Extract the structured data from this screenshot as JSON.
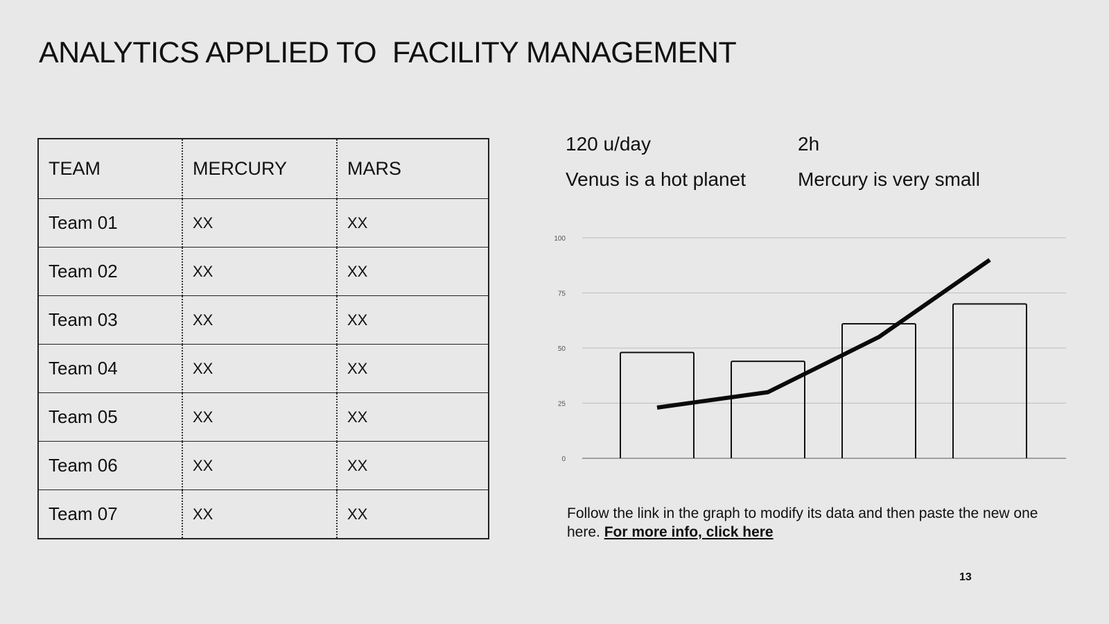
{
  "title": "ANALYTICS APPLIED TO  FACILITY MANAGEMENT",
  "table": {
    "headers": [
      "TEAM",
      "MERCURY",
      "MARS"
    ],
    "rows": [
      [
        "Team 01",
        "XX",
        "XX"
      ],
      [
        "Team 02",
        "XX",
        "XX"
      ],
      [
        "Team 03",
        "XX",
        "XX"
      ],
      [
        "Team 04",
        "XX",
        "XX"
      ],
      [
        "Team 05",
        "XX",
        "XX"
      ],
      [
        "Team 06",
        "XX",
        "XX"
      ],
      [
        "Team 07",
        "XX",
        "XX"
      ]
    ]
  },
  "stats": [
    {
      "value": "120 u/day",
      "caption": "Venus is a hot planet"
    },
    {
      "value": "2h",
      "caption": "Mercury is very small"
    }
  ],
  "chart_data": {
    "type": "bar",
    "categories": [
      "",
      "",
      "",
      ""
    ],
    "series": [
      {
        "type": "bar",
        "values": [
          48,
          44,
          61,
          70
        ]
      },
      {
        "type": "line",
        "values": [
          23,
          30,
          55,
          90
        ]
      }
    ],
    "ylim": [
      0,
      100
    ],
    "yticks": [
      0,
      25,
      50,
      75,
      100
    ],
    "grid": true,
    "title": "",
    "xlabel": "",
    "ylabel": ""
  },
  "note": {
    "text": "Follow the link in the graph to modify its data and then paste the new one here. ",
    "link": "For more info, click here"
  },
  "page_number": "13"
}
